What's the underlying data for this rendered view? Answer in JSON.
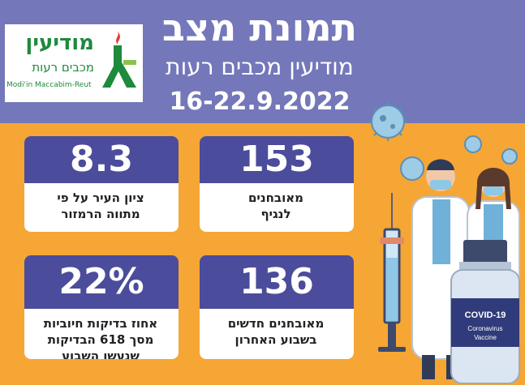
{
  "header": {
    "title": "תמונת מצב",
    "subtitle": "מודיעין מכבים רעות",
    "dates": "16-22.9.2022"
  },
  "logo": {
    "city": "מודיעין",
    "sub": "מכבים רעות",
    "english": "Modi'in Maccabim-Reut"
  },
  "cards": [
    {
      "value": "153",
      "label_line1": "מאובחנים",
      "label_line2": "לנגיף"
    },
    {
      "value": "8.3",
      "label_line1": "ציון העיר על פי",
      "label_line2": "מתווה הרמזור"
    },
    {
      "value": "136",
      "label_line1": "מאובחנים חדשים",
      "label_line2": "בשבוע האחרון"
    },
    {
      "value": "22%",
      "label_line1": "אחוז בדיקות חיוביות",
      "label_line2": "מסך 618 הבדיקות",
      "label_line3": "שנעשו השבוע"
    }
  ],
  "vial": {
    "label": "COVID-19",
    "sub1": "Coronavirus",
    "sub2": "Vaccine"
  },
  "colors": {
    "header_bg": "#7477b9",
    "body_bg": "#f5a634",
    "card_top": "#4b4c9b",
    "logo_green": "#1d8a3c"
  }
}
